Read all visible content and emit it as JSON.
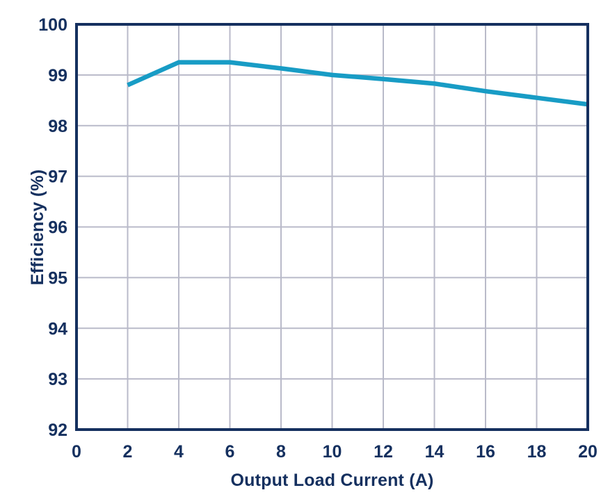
{
  "chart_data": {
    "type": "line",
    "title": "",
    "xlabel": "Output Load Current (A)",
    "ylabel": "Efficiency (%)",
    "x": [
      2,
      4,
      6,
      8,
      10,
      12,
      14,
      16,
      18,
      20
    ],
    "series": [
      {
        "name": "efficiency",
        "values": [
          98.8,
          99.25,
          99.25,
          99.13,
          99.0,
          98.92,
          98.83,
          98.68,
          98.55,
          98.42
        ]
      }
    ],
    "xlim": [
      0,
      20
    ],
    "ylim": [
      92,
      100
    ],
    "x_ticks": [
      0,
      2,
      4,
      6,
      8,
      10,
      12,
      14,
      16,
      18,
      20
    ],
    "y_ticks": [
      92,
      93,
      94,
      95,
      96,
      97,
      98,
      99,
      100
    ],
    "grid": true,
    "legend_position": "none",
    "colors": {
      "line": "#189CC5",
      "axis": "#15305F",
      "grid": "#B9BAC9",
      "label": "#15305F",
      "background": "#FFFFFF"
    }
  }
}
